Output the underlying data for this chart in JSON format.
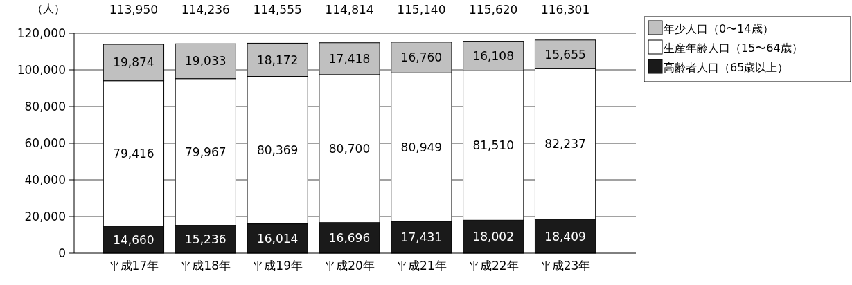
{
  "chart_data": {
    "type": "bar",
    "stacked": true,
    "ylabel": "（人）",
    "categories": [
      "平成17年",
      "平成18年",
      "平成19年",
      "平成20年",
      "平成21年",
      "平成22年",
      "平成23年"
    ],
    "series": [
      {
        "name": "高齢者人口（65歳以上）",
        "color": "#1a1a1a",
        "values": [
          14660,
          15236,
          16014,
          16696,
          17431,
          18002,
          18409
        ],
        "value_labels": [
          "14,660",
          "15,236",
          "16,014",
          "16,696",
          "17,431",
          "18,002",
          "18,409"
        ]
      },
      {
        "name": "生産年齢人口（15〜64歳）",
        "color": "#ffffff",
        "values": [
          79416,
          79967,
          80369,
          80700,
          80949,
          81510,
          82237
        ],
        "value_labels": [
          "79,416",
          "79,967",
          "80,369",
          "80,700",
          "80,949",
          "81,510",
          "82,237"
        ]
      },
      {
        "name": "年少人口（0〜14歳）",
        "color": "#c0c0c0",
        "values": [
          19874,
          19033,
          18172,
          17418,
          16760,
          16108,
          15655
        ],
        "value_labels": [
          "19,874",
          "19,033",
          "18,172",
          "17,418",
          "16,760",
          "16,108",
          "15,655"
        ]
      }
    ],
    "totals": [
      "113,950",
      "114,236",
      "114,555",
      "114,814",
      "115,140",
      "115,620",
      "116,301"
    ],
    "ylim": [
      0,
      120000
    ],
    "yticks": [
      {
        "value": 0,
        "label": "0"
      },
      {
        "value": 20000,
        "label": "20,000"
      },
      {
        "value": 40000,
        "label": "40,000"
      },
      {
        "value": 60000,
        "label": "60,000"
      },
      {
        "value": 80000,
        "label": "80,000"
      },
      {
        "value": 100000,
        "label": "100,000"
      },
      {
        "value": 120000,
        "label": "120,000"
      }
    ],
    "grid": "y",
    "legend": "top right"
  }
}
